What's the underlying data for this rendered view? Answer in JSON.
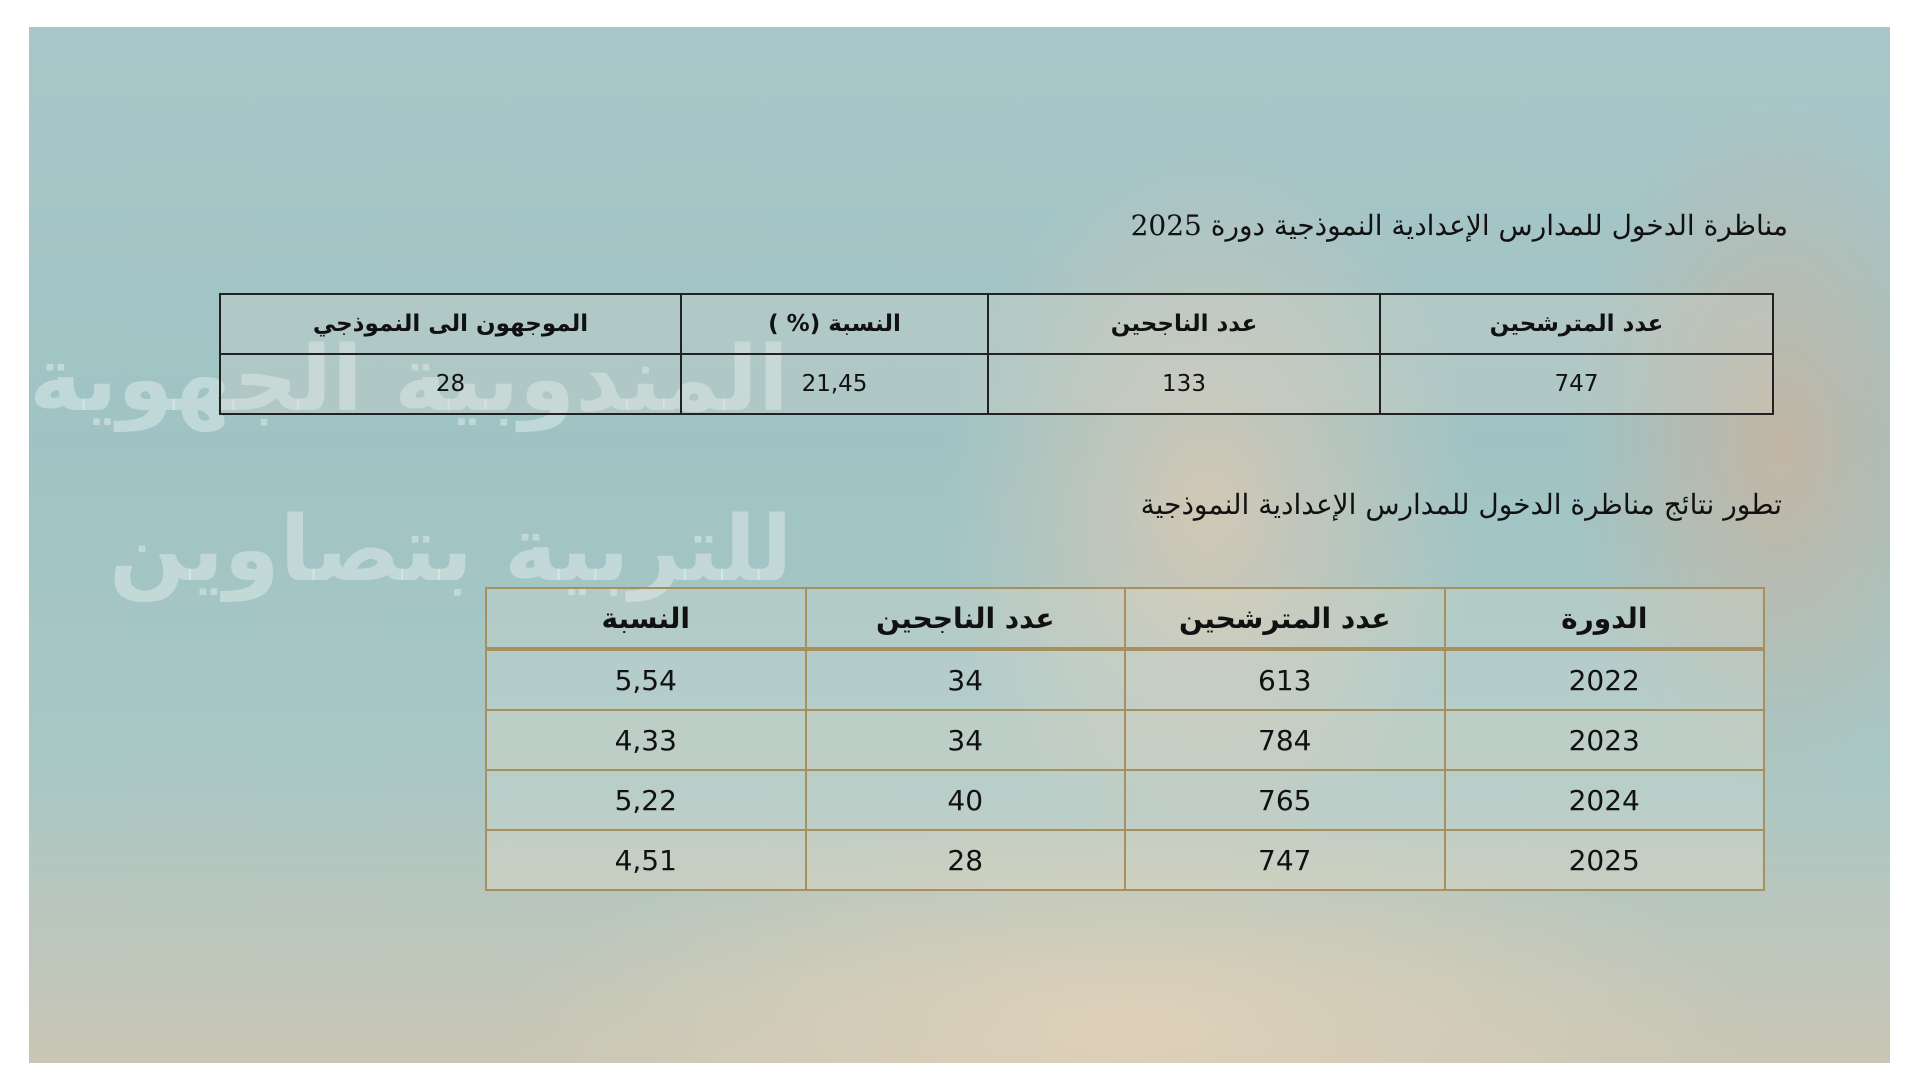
{
  "watermark": {
    "line1": "المندوبية الجهوية",
    "line2": "للتربية بتصاوين"
  },
  "section1": {
    "title": "مناظرة الدخول للمدارس الإعدادية النموذجية دورة 2025",
    "headers": [
      "عدد المترشحين",
      "عدد الناجحين",
      "النسبة (% )",
      "الموجهون الى النموذجي"
    ],
    "row": [
      "747",
      "133",
      "21,45",
      "28"
    ]
  },
  "section2": {
    "title": "تطور نتائج مناظرة الدخول للمدارس الإعدادية النموذجية",
    "headers": [
      "الدورة",
      "عدد المترشحين",
      "عدد الناجحين",
      "النسبة"
    ],
    "rows": [
      [
        "2022",
        "613",
        "34",
        "5,54"
      ],
      [
        "2023",
        "784",
        "34",
        "4,33"
      ],
      [
        "2024",
        "765",
        "40",
        "5,22"
      ],
      [
        "2025",
        "747",
        "28",
        "4,51"
      ]
    ]
  },
  "colors": {
    "table1_border": "#222222",
    "table2_border": "#a8905e"
  }
}
